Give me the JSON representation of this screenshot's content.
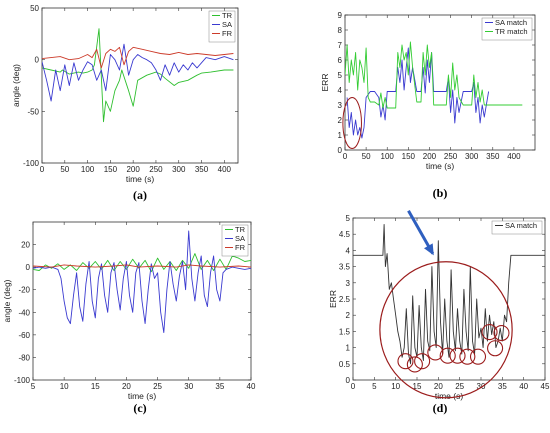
{
  "colors": {
    "TR": "#2fbf2f",
    "SA": "#3a3ad0",
    "FR": "#cc3b2a",
    "SA_match": "#3a3ad0",
    "TR_match": "#33cc33",
    "SA_match_d": "#333333",
    "circle": "#9b1c1c",
    "arrow": "#2f5fbf"
  },
  "chart_data": [
    {
      "id": "a",
      "type": "line",
      "panel_label": "(a)",
      "xlabel": "time (s)",
      "ylabel": "angle (deg)",
      "xlim": [
        0,
        430
      ],
      "ylim": [
        -100,
        50
      ],
      "xticks": [
        0,
        50,
        100,
        150,
        200,
        250,
        300,
        350,
        400
      ],
      "yticks": [
        -100,
        -50,
        0,
        50
      ],
      "legend": {
        "position": "top-right",
        "entries": [
          "TR",
          "SA",
          "FR"
        ]
      },
      "series": [
        {
          "name": "TR",
          "color_key": "TR",
          "x": [
            0,
            20,
            40,
            45,
            60,
            80,
            90,
            100,
            110,
            115,
            125,
            135,
            140,
            150,
            160,
            170,
            175,
            190,
            200,
            210,
            230,
            250,
            260,
            270,
            290,
            300,
            320,
            340,
            350,
            370,
            400,
            420
          ],
          "y": [
            -8,
            -10,
            -12,
            -10,
            -14,
            -12,
            -13,
            -12,
            -10,
            -5,
            30,
            -60,
            -40,
            -50,
            -30,
            -20,
            -10,
            -30,
            -45,
            -20,
            -15,
            -12,
            -14,
            -18,
            -25,
            -22,
            -20,
            -15,
            -13,
            -12,
            -10,
            -10
          ]
        },
        {
          "name": "SA",
          "color_key": "SA",
          "x": [
            0,
            10,
            20,
            30,
            40,
            50,
            60,
            70,
            80,
            90,
            100,
            110,
            120,
            130,
            140,
            150,
            160,
            170,
            180,
            190,
            200,
            210,
            220,
            230,
            240,
            250,
            260,
            270,
            280,
            290,
            300,
            310,
            320,
            330,
            340,
            350,
            360,
            380,
            400,
            420
          ],
          "y": [
            -2,
            -20,
            -40,
            -10,
            -30,
            -5,
            -25,
            -3,
            -20,
            -10,
            -2,
            -5,
            -20,
            -10,
            -30,
            5,
            0,
            -10,
            15,
            -15,
            0,
            5,
            2,
            0,
            -3,
            -10,
            -20,
            -5,
            -15,
            -3,
            -12,
            -5,
            -10,
            -3,
            -8,
            -3,
            2,
            0,
            3,
            0
          ]
        },
        {
          "name": "FR",
          "color_key": "FR",
          "x": [
            0,
            20,
            40,
            60,
            80,
            100,
            110,
            120,
            130,
            140,
            150,
            160,
            170,
            180,
            190,
            200,
            220,
            240,
            260,
            280,
            300,
            320,
            340,
            360,
            380,
            400,
            420
          ],
          "y": [
            1,
            2,
            3,
            0,
            1,
            5,
            2,
            10,
            -8,
            6,
            10,
            8,
            12,
            -5,
            8,
            12,
            10,
            8,
            6,
            5,
            7,
            5,
            6,
            5,
            4,
            5,
            6
          ]
        }
      ]
    },
    {
      "id": "b",
      "type": "line",
      "panel_label": "(b)",
      "xlabel": "time (s)",
      "ylabel": "ERR",
      "xlim": [
        0,
        450
      ],
      "ylim": [
        0,
        9
      ],
      "xticks": [
        0,
        50,
        100,
        150,
        200,
        250,
        300,
        350,
        400
      ],
      "yticks": [
        0,
        1,
        2,
        3,
        4,
        5,
        6,
        7,
        8,
        9
      ],
      "legend": {
        "position": "top-right",
        "entries": [
          "SA match",
          "TR match"
        ]
      },
      "series": [
        {
          "name": "SA match",
          "color_key": "SA_match",
          "x": [
            5,
            10,
            15,
            20,
            25,
            30,
            35,
            40,
            45,
            50,
            60,
            70,
            80,
            85,
            90,
            95,
            100,
            120,
            125,
            130,
            135,
            140,
            145,
            150,
            155,
            160,
            170,
            180,
            185,
            190,
            195,
            200,
            205,
            210,
            230,
            240,
            245,
            250,
            255,
            260,
            265,
            270,
            280,
            290,
            300,
            305,
            310,
            315,
            320,
            325,
            330,
            340
          ],
          "y": [
            3.5,
            1.5,
            2.5,
            1.0,
            2.0,
            1.0,
            1.5,
            0.8,
            1.5,
            3.5,
            3.9,
            3.9,
            3.5,
            2.2,
            3.0,
            2.0,
            3.9,
            3.9,
            5.5,
            4.5,
            6.0,
            4.0,
            5.5,
            6.8,
            4.5,
            5.5,
            3.9,
            3.9,
            5.5,
            3.8,
            6.0,
            4.5,
            6.5,
            3.9,
            3.9,
            3.9,
            4.8,
            2.5,
            4.0,
            1.8,
            3.5,
            2.5,
            3.9,
            3.9,
            3.9,
            4.5,
            2.5,
            3.5,
            1.8,
            3.0,
            2.2,
            3.9
          ]
        },
        {
          "name": "TR match",
          "color_key": "TR_match",
          "x": [
            0,
            5,
            10,
            15,
            20,
            25,
            30,
            35,
            40,
            45,
            50,
            55,
            60,
            70,
            80,
            85,
            90,
            95,
            100,
            120,
            125,
            130,
            135,
            140,
            145,
            150,
            155,
            160,
            170,
            180,
            185,
            190,
            195,
            200,
            205,
            210,
            230,
            240,
            245,
            250,
            255,
            260,
            265,
            270,
            280,
            290,
            300,
            305,
            310,
            315,
            320,
            325,
            330,
            340,
            380,
            420
          ],
          "y": [
            5.0,
            7.0,
            4.5,
            6.0,
            5.0,
            6.5,
            4.0,
            6.0,
            5.5,
            4.5,
            6.8,
            3.5,
            3.2,
            3.2,
            3.0,
            3.8,
            2.8,
            3.5,
            2.8,
            2.8,
            6.5,
            5.5,
            7.0,
            6.0,
            6.5,
            5.0,
            7.2,
            5.5,
            3.2,
            3.2,
            6.5,
            5.0,
            7.0,
            5.5,
            6.5,
            3.0,
            3.0,
            3.0,
            5.0,
            3.5,
            5.8,
            4.0,
            5.0,
            3.5,
            3.0,
            3.0,
            3.0,
            5.0,
            3.5,
            4.5,
            3.2,
            4.0,
            3.0,
            3.0,
            3.0,
            3.0
          ]
        }
      ],
      "annotations": [
        {
          "type": "ellipse",
          "cx": 17,
          "cy": 1.8,
          "rx": 22,
          "ry": 1.7
        }
      ]
    },
    {
      "id": "c",
      "type": "line",
      "panel_label": "(c)",
      "xlabel": "time (s)",
      "ylabel": "angle (deg)",
      "xlim": [
        5,
        40
      ],
      "ylim": [
        -100,
        40
      ],
      "xticks": [
        5,
        10,
        15,
        20,
        25,
        30,
        35,
        40
      ],
      "yticks": [
        -100,
        -80,
        -60,
        -40,
        -20,
        0,
        20
      ],
      "legend": {
        "position": "top-right",
        "entries": [
          "TR",
          "SA",
          "FR"
        ]
      },
      "series": [
        {
          "name": "TR",
          "color_key": "TR",
          "x": [
            5,
            6,
            7,
            8,
            9,
            10,
            11,
            12,
            13,
            14,
            15,
            16,
            17,
            18,
            19,
            20,
            21,
            22,
            23,
            24,
            25,
            26,
            27,
            28,
            29,
            30,
            31,
            32,
            33,
            34,
            35,
            36,
            37,
            38,
            39,
            40
          ],
          "y": [
            -2,
            -3,
            2,
            -1,
            3,
            -2,
            2,
            -3,
            4,
            -1,
            5,
            -2,
            6,
            -3,
            5,
            -2,
            7,
            -1,
            6,
            -4,
            8,
            -2,
            5,
            -3,
            6,
            -1,
            12,
            -2,
            6,
            -3,
            7,
            -2,
            10,
            8,
            5,
            6
          ]
        },
        {
          "name": "SA",
          "color_key": "SA",
          "x": [
            5,
            6,
            7,
            8,
            9,
            9.5,
            10,
            10.5,
            11,
            11.5,
            12,
            12.5,
            13,
            13.5,
            14,
            14.5,
            15,
            15.5,
            16,
            16.5,
            17,
            17.5,
            18,
            18.5,
            19,
            19.5,
            20,
            20.5,
            21,
            21.5,
            22,
            22.5,
            23,
            23.5,
            24,
            24.5,
            25,
            25.5,
            26,
            26.5,
            27,
            27.5,
            28,
            28.5,
            29,
            29.5,
            30,
            30.5,
            31,
            31.5,
            32,
            32.5,
            33,
            33.5,
            34,
            34.5,
            35,
            35.5,
            36,
            37,
            38,
            39,
            40
          ],
          "y": [
            -1,
            0,
            -1,
            0,
            -2,
            -10,
            -30,
            -45,
            -50,
            -25,
            -5,
            -35,
            -48,
            -15,
            5,
            -30,
            -45,
            -10,
            3,
            -25,
            -40,
            -5,
            4,
            -20,
            -38,
            -10,
            5,
            -25,
            -40,
            -5,
            4,
            -30,
            -50,
            -20,
            3,
            -10,
            -5,
            -40,
            -58,
            -20,
            5,
            -15,
            -30,
            -8,
            5,
            -20,
            32,
            -10,
            -30,
            -5,
            10,
            -25,
            -35,
            -5,
            10,
            -20,
            -30,
            -5,
            -2,
            0,
            -1,
            -2,
            -1
          ]
        },
        {
          "name": "FR",
          "color_key": "FR",
          "x": [
            5,
            8,
            10,
            12,
            15,
            18,
            20,
            22,
            25,
            28,
            30,
            32,
            35,
            38,
            40
          ],
          "y": [
            1,
            0,
            2,
            1,
            0,
            1,
            2,
            0,
            1,
            0,
            2,
            1,
            0,
            1,
            0
          ]
        }
      ]
    },
    {
      "id": "d",
      "type": "line",
      "panel_label": "(d)",
      "xlabel": "time (s)",
      "ylabel": "ERR",
      "xlim": [
        0,
        45
      ],
      "ylim": [
        0,
        5
      ],
      "xticks": [
        0,
        5,
        10,
        15,
        20,
        25,
        30,
        35,
        40,
        45
      ],
      "yticks": [
        0,
        0.5,
        1,
        1.5,
        2,
        2.5,
        3,
        3.5,
        4,
        4.5,
        5
      ],
      "legend": {
        "position": "top-right",
        "entries": [
          "SA match"
        ]
      },
      "series": [
        {
          "name": "SA match",
          "color_key": "SA_match_d",
          "x": [
            0,
            7,
            7.3,
            7.6,
            8,
            8.5,
            9,
            9.5,
            10,
            10.5,
            11,
            11.5,
            12,
            12.5,
            13,
            13.5,
            14,
            14.5,
            15,
            15.5,
            16,
            16.5,
            17,
            17.5,
            18,
            18.5,
            19,
            19.5,
            20,
            20.5,
            21,
            21.5,
            22,
            22.5,
            23,
            23.5,
            24,
            24.5,
            25,
            25.5,
            26,
            26.5,
            27,
            27.5,
            28,
            28.5,
            29,
            29.5,
            30,
            30.5,
            31,
            31.5,
            32,
            32.5,
            33,
            33.5,
            34,
            34.5,
            35,
            35.5,
            36,
            36.5,
            37,
            45
          ],
          "y": [
            3.85,
            3.85,
            4.8,
            3.5,
            3.9,
            2.8,
            3.0,
            2.5,
            2.0,
            1.5,
            1.2,
            0.7,
            1.0,
            2.2,
            0.8,
            0.5,
            2.6,
            1.0,
            0.7,
            2.3,
            1.0,
            0.6,
            2.8,
            1.2,
            0.9,
            3.5,
            1.5,
            1.0,
            4.3,
            1.8,
            0.8,
            2.5,
            1.2,
            0.7,
            3.4,
            1.5,
            0.9,
            2.2,
            1.2,
            0.8,
            2.8,
            1.5,
            0.9,
            3.5,
            1.2,
            0.8,
            2.5,
            1.3,
            1.6,
            1.0,
            2.2,
            1.2,
            2.0,
            1.4,
            1.8,
            1.0,
            1.2,
            1.6,
            1.2,
            2.0,
            1.8,
            3.0,
            3.85,
            3.85
          ]
        }
      ],
      "annotations": [
        {
          "type": "big_circle",
          "cx": 21.8,
          "cy": 1.55,
          "r_x": 15.5,
          "r_y": 2.1
        },
        {
          "type": "small_circles",
          "points": [
            [
              12.3,
              0.58
            ],
            [
              14.5,
              0.48
            ],
            [
              16.2,
              0.58
            ],
            [
              19.3,
              0.85
            ],
            [
              22.2,
              0.75
            ],
            [
              24.5,
              0.75
            ],
            [
              26.8,
              0.72
            ],
            [
              29.3,
              0.72
            ],
            [
              32.0,
              1.48
            ],
            [
              33.3,
              0.98
            ],
            [
              34.8,
              1.45
            ]
          ]
        },
        {
          "type": "arrow",
          "from": [
            13,
            5.1
          ],
          "to": [
            18.7,
            3.9
          ]
        }
      ]
    }
  ]
}
